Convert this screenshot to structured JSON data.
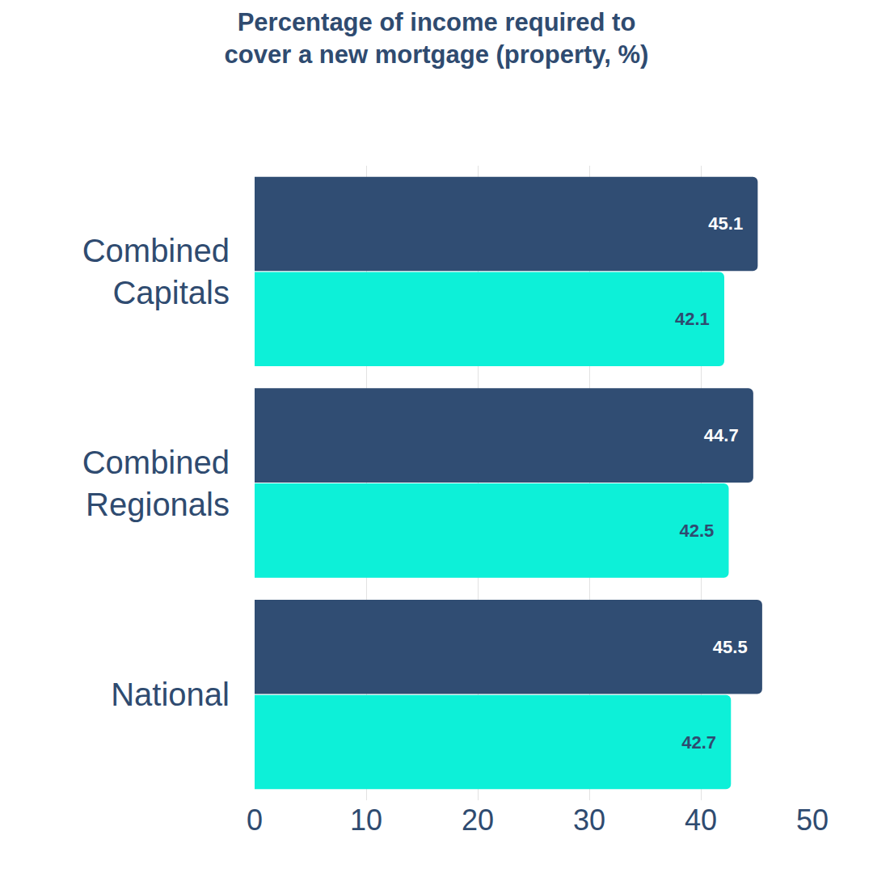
{
  "chart_data": {
    "type": "bar",
    "orientation": "horizontal",
    "title": "Percentage of income required to cover a new mortgage (property, %)",
    "categories": [
      "Combined Capitals",
      "Combined Regionals",
      "National"
    ],
    "series": [
      {
        "color": "#304d73",
        "values": [
          45.1,
          44.7,
          45.5
        ]
      },
      {
        "color": "#0df0d8",
        "values": [
          42.1,
          42.5,
          42.7
        ]
      }
    ],
    "xlim": [
      0,
      50
    ],
    "xticks": [
      0,
      10,
      20,
      30,
      40,
      50
    ],
    "grid": true,
    "data_labels": true
  }
}
